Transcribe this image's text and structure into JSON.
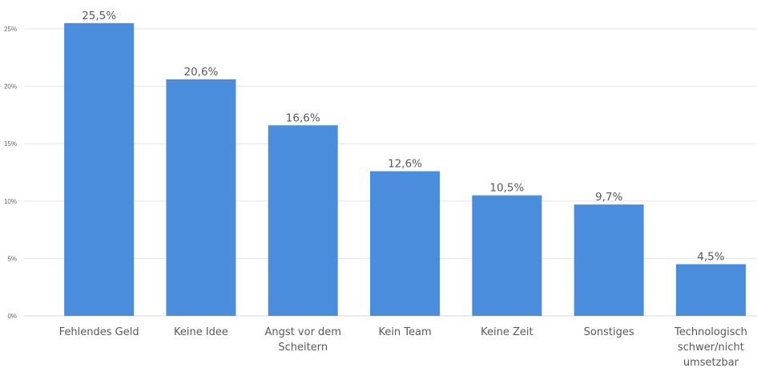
{
  "chart_data": {
    "type": "bar",
    "categories": [
      "Fehlendes Geld",
      "Keine Idee",
      "Angst vor dem Scheitern",
      "Kein Team",
      "Keine Zeit",
      "Sonstiges",
      "Technologisch schwer/nicht umsetzbar"
    ],
    "category_label_lines": [
      [
        "Fehlendes Geld"
      ],
      [
        "Keine Idee"
      ],
      [
        "Angst vor dem",
        "Scheitern"
      ],
      [
        "Kein Team"
      ],
      [
        "Keine Zeit"
      ],
      [
        "Sonstiges"
      ],
      [
        "Technologisch",
        "schwer/nicht",
        "umsetzbar"
      ]
    ],
    "values": [
      25.5,
      20.6,
      16.6,
      12.6,
      10.5,
      9.7,
      4.5
    ],
    "data_labels": [
      "25,5%",
      "20,6%",
      "16,6%",
      "12,6%",
      "10,5%",
      "9,7%",
      "4,5%"
    ],
    "yticks": [
      0,
      5,
      10,
      15,
      20,
      25
    ],
    "ytick_labels": [
      "0%",
      "5%",
      "10%",
      "15%",
      "20%",
      "25%"
    ],
    "ylim": [
      0,
      27.5
    ],
    "grid": true,
    "legend": "none",
    "title": "",
    "xlabel": "",
    "ylabel": "",
    "bar_color": "#4a8ddc"
  }
}
